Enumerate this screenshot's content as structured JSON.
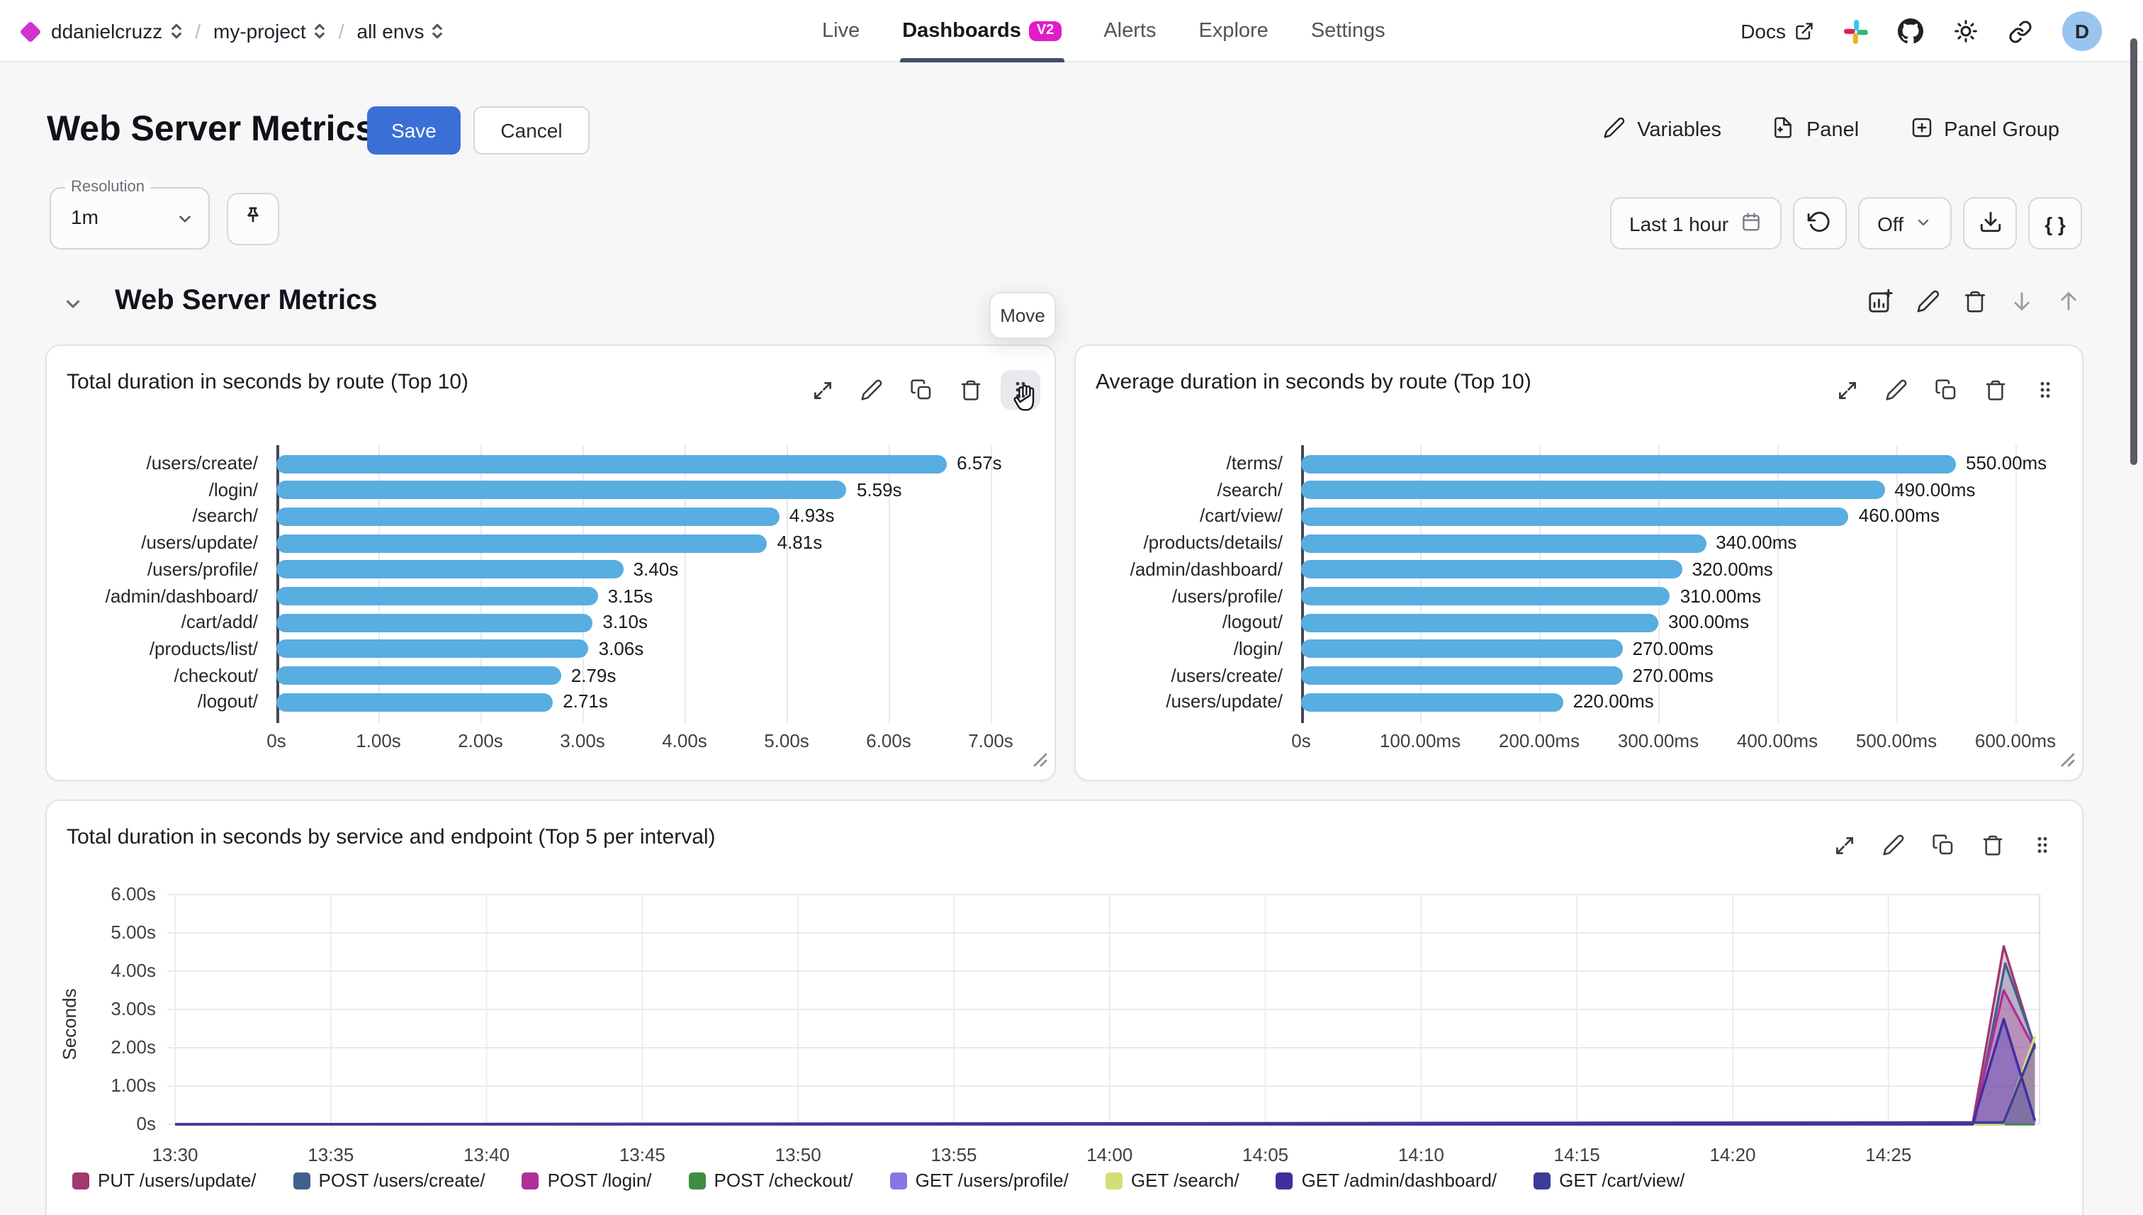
{
  "topbar": {
    "breadcrumb": [
      {
        "label": "ddanielcruzz"
      },
      {
        "label": "my-project"
      },
      {
        "label": "all envs"
      }
    ],
    "tabs": [
      {
        "label": "Live",
        "active": false
      },
      {
        "label": "Dashboards",
        "badge": "V2",
        "active": true
      },
      {
        "label": "Alerts",
        "active": false
      },
      {
        "label": "Explore",
        "active": false
      },
      {
        "label": "Settings",
        "active": false
      }
    ],
    "docs_label": "Docs",
    "avatar_initial": "D"
  },
  "page_header": {
    "title": "Web Server Metrics",
    "save_label": "Save",
    "cancel_label": "Cancel",
    "variables_label": "Variables",
    "panel_label": "Panel",
    "panel_group_label": "Panel Group"
  },
  "toolbar": {
    "resolution_label": "Resolution",
    "resolution_value": "1m",
    "time_range_label": "Last 1 hour",
    "refresh_off_label": "Off",
    "code_button_label": "{ }"
  },
  "section": {
    "title": "Web Server Metrics",
    "move_tooltip": "Move"
  },
  "colors": {
    "accent_blue": "#3a6fd6",
    "bar_blue": "#58ade1",
    "badge_magenta": "#e21cc7",
    "logo_magenta": "#cf35cd",
    "tab_underline": "#414f69",
    "avatar_bg": "#99c4ef"
  },
  "chart_data": [
    {
      "type": "bar",
      "orientation": "horizontal",
      "title": "Total duration in seconds by route (Top 10)",
      "categories": [
        "/users/create/",
        "/login/",
        "/search/",
        "/users/update/",
        "/users/profile/",
        "/admin/dashboard/",
        "/cart/add/",
        "/products/list/",
        "/checkout/",
        "/logout/"
      ],
      "values": [
        6.57,
        5.59,
        4.93,
        4.81,
        3.4,
        3.15,
        3.1,
        3.06,
        2.79,
        2.71
      ],
      "value_labels": [
        "6.57s",
        "5.59s",
        "4.93s",
        "4.81s",
        "3.40s",
        "3.15s",
        "3.10s",
        "3.06s",
        "2.79s",
        "2.71s"
      ],
      "unit": "seconds",
      "x_ticks": [
        {
          "value": 0,
          "label": "0s"
        },
        {
          "value": 1,
          "label": "1.00s"
        },
        {
          "value": 2,
          "label": "2.00s"
        },
        {
          "value": 3,
          "label": "3.00s"
        },
        {
          "value": 4,
          "label": "4.00s"
        },
        {
          "value": 5,
          "label": "5.00s"
        },
        {
          "value": 6,
          "label": "6.00s"
        },
        {
          "value": 7,
          "label": "7.00s"
        }
      ],
      "xlim": [
        0,
        7.4
      ],
      "bar_color": "#58ade1"
    },
    {
      "type": "bar",
      "orientation": "horizontal",
      "title": "Average duration in seconds by route (Top 10)",
      "categories": [
        "/terms/",
        "/search/",
        "/cart/view/",
        "/products/details/",
        "/admin/dashboard/",
        "/users/profile/",
        "/logout/",
        "/login/",
        "/users/create/",
        "/users/update/"
      ],
      "values": [
        550,
        490,
        460,
        340,
        320,
        310,
        300,
        270,
        270,
        220
      ],
      "value_labels": [
        "550.00ms",
        "490.00ms",
        "460.00ms",
        "340.00ms",
        "320.00ms",
        "310.00ms",
        "300.00ms",
        "270.00ms",
        "270.00ms",
        "220.00ms"
      ],
      "unit": "milliseconds",
      "x_ticks": [
        {
          "value": 0,
          "label": "0s"
        },
        {
          "value": 100,
          "label": "100.00ms"
        },
        {
          "value": 200,
          "label": "200.00ms"
        },
        {
          "value": 300,
          "label": "300.00ms"
        },
        {
          "value": 400,
          "label": "400.00ms"
        },
        {
          "value": 500,
          "label": "500.00ms"
        },
        {
          "value": 600,
          "label": "600.00ms"
        }
      ],
      "xlim": [
        0,
        655
      ],
      "bar_color": "#58ade1"
    },
    {
      "type": "area",
      "title": "Total duration in seconds by service and endpoint (Top 5 per interval)",
      "ylabel": "Seconds",
      "y_ticks": [
        {
          "value": 0,
          "label": "0s"
        },
        {
          "value": 1,
          "label": "1.00s"
        },
        {
          "value": 2,
          "label": "2.00s"
        },
        {
          "value": 3,
          "label": "3.00s"
        },
        {
          "value": 4,
          "label": "4.00s"
        },
        {
          "value": 5,
          "label": "5.00s"
        },
        {
          "value": 6,
          "label": "6.00s"
        }
      ],
      "x_ticks": [
        {
          "minute": 0,
          "label": "13:30"
        },
        {
          "minute": 5,
          "label": "13:35"
        },
        {
          "minute": 10,
          "label": "13:40"
        },
        {
          "minute": 15,
          "label": "13:45"
        },
        {
          "minute": 20,
          "label": "13:50"
        },
        {
          "minute": 25,
          "label": "13:55"
        },
        {
          "minute": 30,
          "label": "14:00"
        },
        {
          "minute": 35,
          "label": "14:05"
        },
        {
          "minute": 40,
          "label": "14:10"
        },
        {
          "minute": 45,
          "label": "14:15"
        },
        {
          "minute": 50,
          "label": "14:20"
        },
        {
          "minute": 55,
          "label": "14:25"
        }
      ],
      "x_range_minutes": [
        0,
        59.8
      ],
      "ylim": [
        0,
        6
      ],
      "series": [
        {
          "name": "PUT /users/update/",
          "color": "#a0396d",
          "points": [
            [
              0,
              0
            ],
            [
              57.7,
              0
            ],
            [
              58.7,
              4.65
            ],
            [
              59.7,
              2.0
            ]
          ]
        },
        {
          "name": "POST /users/create/",
          "color": "#40618d",
          "points": [
            [
              0,
              0
            ],
            [
              57.75,
              0
            ],
            [
              58.75,
              4.2
            ],
            [
              59.7,
              2.05
            ]
          ]
        },
        {
          "name": "POST /login/",
          "color": "#b02f97",
          "points": [
            [
              0,
              0
            ],
            [
              57.7,
              0
            ],
            [
              58.7,
              3.5
            ],
            [
              59.7,
              1.95
            ]
          ]
        },
        {
          "name": "POST /checkout/",
          "color": "#3f8d43",
          "points": [
            [
              0,
              0
            ],
            [
              59.7,
              0
            ]
          ]
        },
        {
          "name": "GET /users/profile/",
          "color": "#8677e2",
          "points": [
            [
              0,
              0
            ],
            [
              57.7,
              0
            ],
            [
              58.7,
              2.7
            ],
            [
              59.7,
              0.05
            ]
          ]
        },
        {
          "name": "GET /search/",
          "color": "#d2df77",
          "points": [
            [
              0,
              0
            ],
            [
              58.7,
              0
            ],
            [
              59.7,
              2.3
            ]
          ]
        },
        {
          "name": "GET /admin/dashboard/",
          "color": "#432d9d",
          "points": [
            [
              0,
              0
            ],
            [
              57.7,
              0
            ],
            [
              58.7,
              2.75
            ],
            [
              59.7,
              0.1
            ]
          ]
        },
        {
          "name": "GET /cart/view/",
          "color": "#3d3b98",
          "points": [
            [
              0,
              0
            ],
            [
              58.7,
              0.05
            ],
            [
              59.7,
              2.1
            ]
          ]
        }
      ]
    }
  ]
}
